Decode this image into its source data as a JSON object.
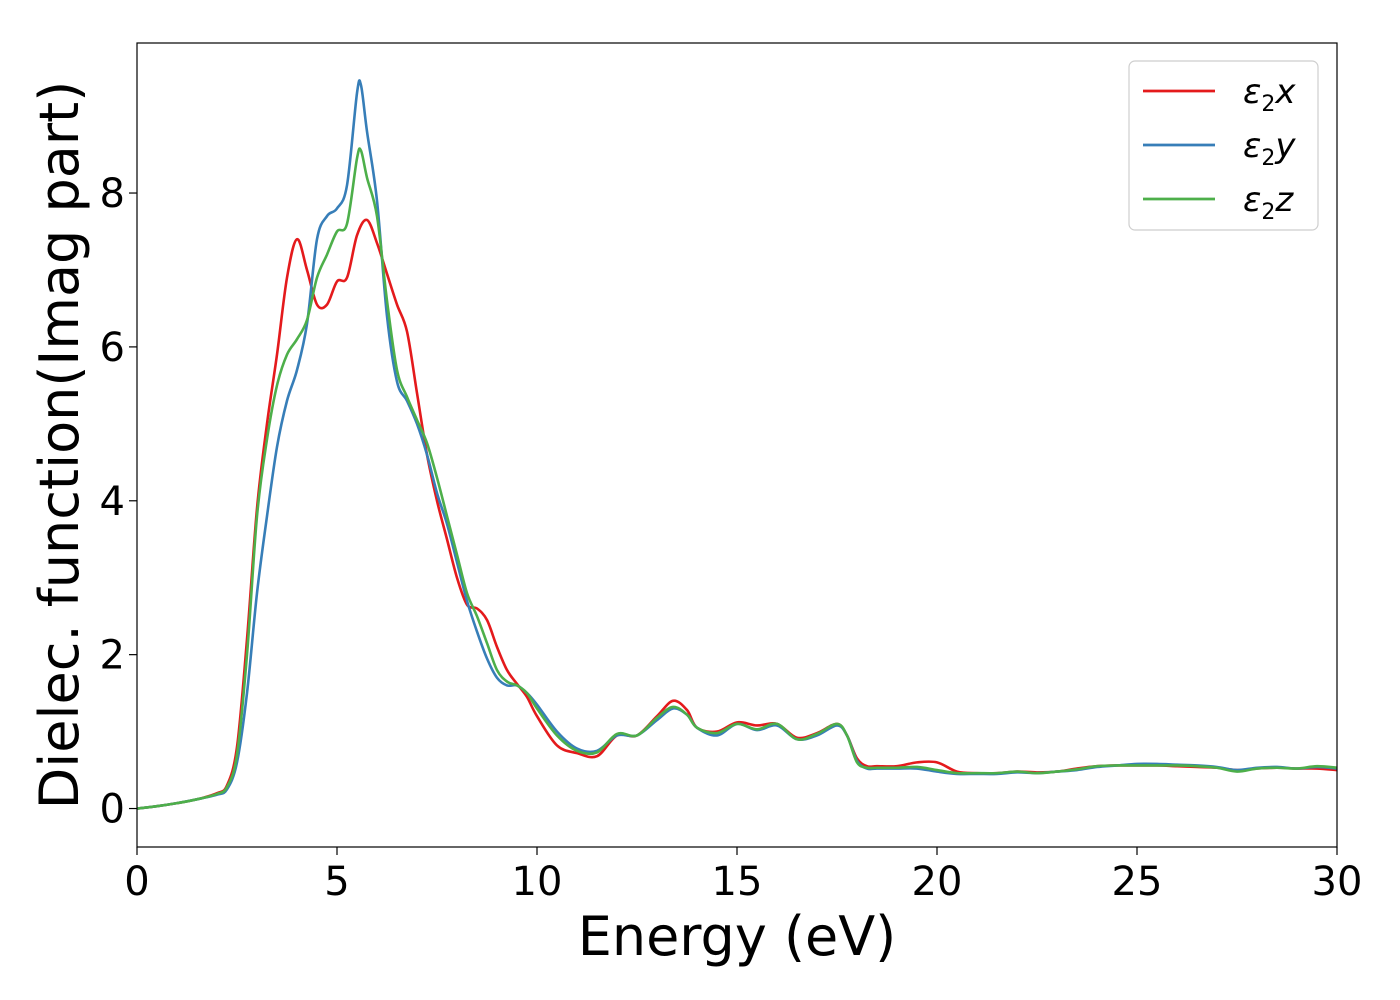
{
  "chart_data": {
    "type": "line",
    "xlabel": "Energy (eV)",
    "ylabel": "Dielec. function(Imag part)",
    "xlim": [
      0,
      30
    ],
    "ylim": [
      -0.5,
      9.95
    ],
    "xticks": [
      0,
      5,
      10,
      15,
      20,
      25,
      30
    ],
    "yticks": [
      0,
      2,
      4,
      6,
      8
    ],
    "grid": false,
    "legend_position": "top-right",
    "series": [
      {
        "name": "ε2x",
        "legend_base": "ε",
        "legend_sub": "2",
        "legend_suffix": "x",
        "color": "#e41a1c",
        "x": [
          0,
          0.5,
          1,
          1.5,
          2,
          2.25,
          2.5,
          2.75,
          3,
          3.25,
          3.5,
          3.75,
          4,
          4.25,
          4.5,
          4.75,
          5,
          5.25,
          5.5,
          5.75,
          6,
          6.25,
          6.5,
          6.75,
          7,
          7.25,
          7.5,
          7.75,
          8,
          8.25,
          8.5,
          8.75,
          9,
          9.25,
          9.5,
          9.75,
          10,
          10.5,
          11,
          11.5,
          12,
          12.5,
          13,
          13.4,
          13.75,
          14,
          14.5,
          15,
          15.5,
          16,
          16.5,
          17,
          17.5,
          17.75,
          18,
          18.25,
          18.5,
          19,
          19.5,
          20,
          20.5,
          21,
          21.5,
          22,
          22.5,
          23,
          23.5,
          24,
          24.5,
          25,
          25.5,
          26,
          26.5,
          27,
          27.5,
          28,
          28.5,
          29,
          29.5,
          30
        ],
        "y": [
          0,
          0.03,
          0.07,
          0.12,
          0.2,
          0.3,
          0.8,
          2.2,
          3.9,
          5.0,
          5.9,
          6.9,
          7.4,
          7.0,
          6.55,
          6.55,
          6.85,
          6.9,
          7.45,
          7.65,
          7.35,
          6.95,
          6.55,
          6.2,
          5.4,
          4.6,
          4.0,
          3.5,
          3.0,
          2.65,
          2.6,
          2.45,
          2.1,
          1.8,
          1.62,
          1.45,
          1.2,
          0.82,
          0.72,
          0.68,
          0.95,
          0.95,
          1.2,
          1.4,
          1.28,
          1.05,
          1.0,
          1.12,
          1.08,
          1.1,
          0.92,
          0.98,
          1.1,
          0.95,
          0.65,
          0.55,
          0.55,
          0.55,
          0.6,
          0.6,
          0.48,
          0.46,
          0.46,
          0.48,
          0.47,
          0.48,
          0.52,
          0.55,
          0.56,
          0.56,
          0.56,
          0.55,
          0.54,
          0.53,
          0.5,
          0.52,
          0.53,
          0.52,
          0.52,
          0.5
        ]
      },
      {
        "name": "ε2y",
        "legend_base": "ε",
        "legend_sub": "2",
        "legend_suffix": "y",
        "color": "#377eb8",
        "x": [
          0,
          0.5,
          1,
          1.5,
          2,
          2.25,
          2.5,
          2.75,
          3,
          3.25,
          3.5,
          3.75,
          4,
          4.25,
          4.5,
          4.75,
          5,
          5.25,
          5.5,
          5.6,
          5.75,
          6,
          6.25,
          6.5,
          6.75,
          7,
          7.25,
          7.5,
          7.75,
          8,
          8.25,
          8.5,
          8.75,
          9,
          9.25,
          9.5,
          9.75,
          10,
          10.5,
          11,
          11.5,
          12,
          12.5,
          13,
          13.4,
          13.75,
          14,
          14.5,
          15,
          15.5,
          16,
          16.5,
          17,
          17.5,
          17.75,
          18,
          18.25,
          18.5,
          19,
          19.5,
          20,
          20.5,
          21,
          21.5,
          22,
          22.5,
          23,
          23.5,
          24,
          24.5,
          25,
          25.5,
          26,
          26.5,
          27,
          27.5,
          28,
          28.5,
          29,
          29.5,
          30
        ],
        "y": [
          0,
          0.03,
          0.07,
          0.12,
          0.18,
          0.25,
          0.6,
          1.5,
          2.8,
          3.8,
          4.7,
          5.3,
          5.7,
          6.3,
          7.4,
          7.7,
          7.8,
          8.1,
          9.3,
          9.4,
          8.8,
          7.9,
          6.4,
          5.55,
          5.3,
          5.0,
          4.6,
          4.1,
          3.7,
          3.2,
          2.7,
          2.3,
          1.95,
          1.7,
          1.6,
          1.6,
          1.5,
          1.35,
          1.0,
          0.78,
          0.75,
          0.95,
          0.95,
          1.15,
          1.3,
          1.22,
          1.05,
          0.95,
          1.1,
          1.02,
          1.08,
          0.9,
          0.95,
          1.08,
          0.95,
          0.62,
          0.52,
          0.52,
          0.52,
          0.52,
          0.48,
          0.45,
          0.45,
          0.45,
          0.47,
          0.46,
          0.48,
          0.5,
          0.54,
          0.56,
          0.58,
          0.58,
          0.57,
          0.56,
          0.54,
          0.5,
          0.53,
          0.54,
          0.52,
          0.54,
          0.52
        ]
      },
      {
        "name": "ε2z",
        "legend_base": "ε",
        "legend_sub": "2",
        "legend_suffix": "z",
        "color": "#4daf4a",
        "x": [
          0,
          0.5,
          1,
          1.5,
          2,
          2.25,
          2.5,
          2.75,
          3,
          3.25,
          3.5,
          3.75,
          4,
          4.25,
          4.5,
          4.75,
          5,
          5.25,
          5.5,
          5.6,
          5.75,
          6,
          6.25,
          6.5,
          6.75,
          7,
          7.25,
          7.5,
          7.75,
          8,
          8.25,
          8.5,
          8.75,
          9,
          9.25,
          9.5,
          9.75,
          10,
          10.5,
          11,
          11.5,
          12,
          12.5,
          13,
          13.4,
          13.75,
          14,
          14.5,
          15,
          15.5,
          16,
          16.5,
          17,
          17.5,
          17.75,
          18,
          18.25,
          18.5,
          19,
          19.5,
          20,
          20.5,
          21,
          21.5,
          22,
          22.5,
          23,
          23.5,
          24,
          24.5,
          25,
          25.5,
          26,
          26.5,
          27,
          27.5,
          28,
          28.5,
          29,
          29.5,
          30
        ],
        "y": [
          0,
          0.03,
          0.07,
          0.12,
          0.19,
          0.28,
          0.7,
          2.0,
          3.8,
          4.8,
          5.5,
          5.9,
          6.1,
          6.35,
          6.9,
          7.2,
          7.5,
          7.6,
          8.45,
          8.55,
          8.2,
          7.7,
          6.6,
          5.7,
          5.35,
          5.05,
          4.75,
          4.3,
          3.8,
          3.3,
          2.8,
          2.5,
          2.15,
          1.8,
          1.65,
          1.6,
          1.5,
          1.3,
          0.95,
          0.75,
          0.73,
          0.97,
          0.95,
          1.18,
          1.32,
          1.22,
          1.05,
          0.98,
          1.1,
          1.03,
          1.1,
          0.9,
          0.97,
          1.1,
          0.95,
          0.6,
          0.53,
          0.53,
          0.53,
          0.54,
          0.5,
          0.46,
          0.46,
          0.46,
          0.48,
          0.46,
          0.48,
          0.51,
          0.55,
          0.56,
          0.56,
          0.56,
          0.56,
          0.55,
          0.53,
          0.48,
          0.52,
          0.53,
          0.52,
          0.55,
          0.53
        ]
      }
    ]
  }
}
